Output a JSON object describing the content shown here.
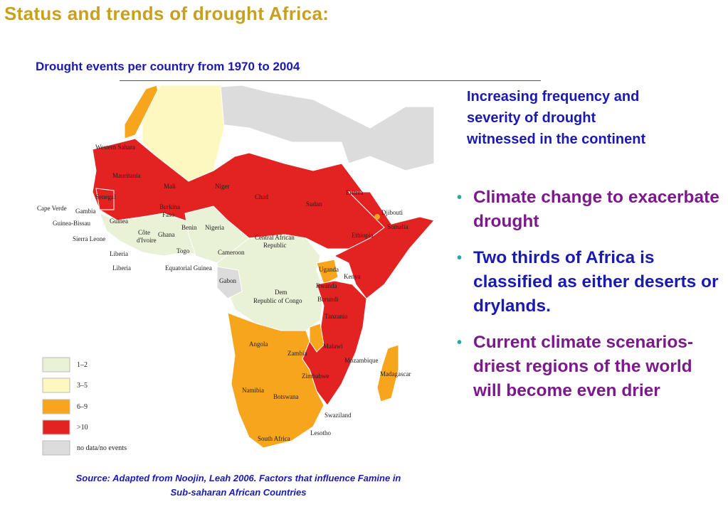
{
  "slide": {
    "title": "Status and trends of drought Africa:",
    "subtitle": "Drought events per country from 1970 to 2004",
    "side_heading": "Increasing frequency and severity of drought witnessed in the continent",
    "bullets": [
      "Climate change to exacerbate drought",
      "Two thirds of Africa is classified as either deserts or drylands.",
      "Current climate scenarios- driest regions of the world will become even drier"
    ],
    "source_line1": "Source: Adapted from Noojin, Leah 2006. Factors that influence Famine in",
    "source_line2": "Sub-saharan  African Countries"
  },
  "map": {
    "legend": [
      {
        "label": "1–2",
        "color": "#e9f2d6"
      },
      {
        "label": "3–5",
        "color": "#fdf8bf"
      },
      {
        "label": "6–9",
        "color": "#f8a51e"
      },
      {
        "label": ">10",
        "color": "#e32222"
      },
      {
        "label": "no data/no events",
        "color": "#dcdcdc"
      }
    ],
    "labels": {
      "western_sahara": "Western Sahara",
      "mauritania": "Mauritania",
      "mali": "Mali",
      "niger": "Niger",
      "chad": "Chad",
      "sudan": "Sudan",
      "eritrea": "Eritrea",
      "djibouti": "Djibouti",
      "senegal": "Senegal",
      "cape_verde": "Cape Verde",
      "gambia": "Gambia",
      "guinea_bissau": "Guinea-Bissau",
      "guinea": "Guinea",
      "sierra_leone": "Sierra Leone",
      "liberia_1": "Liberia",
      "liberia_2": "Liberia",
      "burkina_1": "Burkina",
      "burkina_2": "Faso",
      "cote_1": "Côte",
      "cote_2": "d'Ivoire",
      "ghana": "Ghana",
      "benin": "Benin",
      "togo": "Togo",
      "nigeria": "Nigeria",
      "car_1": "Central African",
      "car_2": "Republic",
      "ethiopia": "Ethiopia",
      "somalia": "Somalia",
      "cameroon": "Cameroon",
      "eq_guinea": "Equatorial Guinea",
      "gabon": "Gabon",
      "uganda": "Uganda",
      "kenya": "Kenya",
      "rwanda": "Rwanda",
      "burundi": "Burundi",
      "drc_1": "Dem",
      "drc_2": "Republic of Congo",
      "tanzania": "Tanzania",
      "angola": "Angola",
      "zambia": "Zambia",
      "malawi": "Malawi",
      "mozambique": "Mozambique",
      "madagascar": "Madagascar",
      "zimbabwe": "Zimbabwe",
      "namibia": "Namibia",
      "botswana": "Botswana",
      "swaziland": "Swaziland",
      "lesotho": "Lesotho",
      "south_africa": "South Africa"
    }
  }
}
